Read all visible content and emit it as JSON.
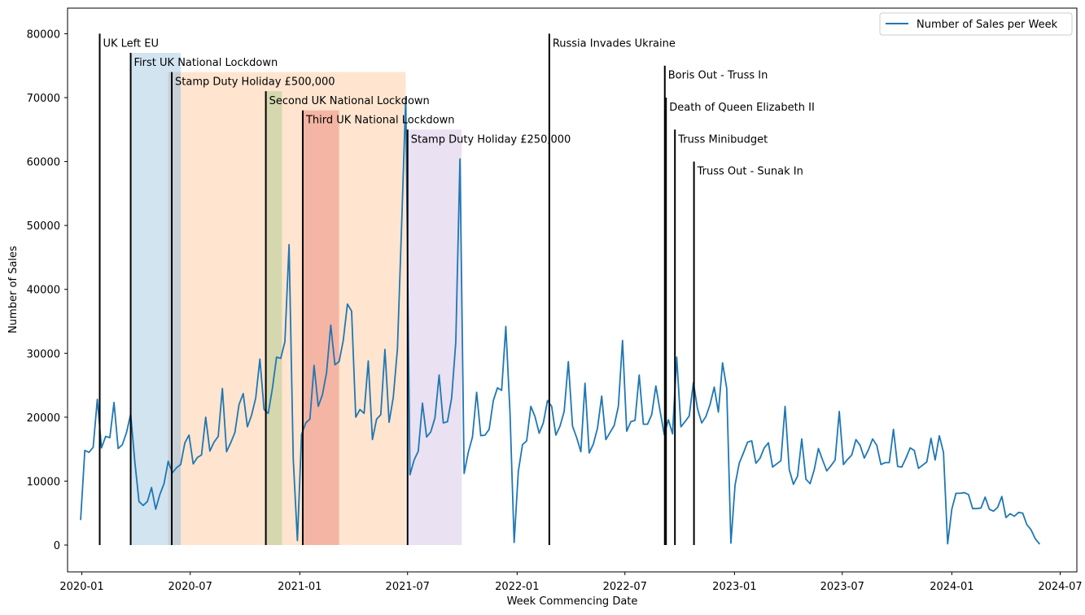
{
  "chart_data": {
    "type": "line",
    "title": "",
    "xlabel": "Week Commencing Date",
    "ylabel": "Number of Sales",
    "xlim": [
      "2019-12-08",
      "2024-07-29"
    ],
    "ylim": [
      -4200,
      84000
    ],
    "x_ticks": [
      {
        "date": "2020-01-01",
        "label": "2020-01"
      },
      {
        "date": "2020-07-01",
        "label": "2020-07"
      },
      {
        "date": "2021-01-01",
        "label": "2021-01"
      },
      {
        "date": "2021-07-01",
        "label": "2021-07"
      },
      {
        "date": "2022-01-01",
        "label": "2022-01"
      },
      {
        "date": "2022-07-01",
        "label": "2022-07"
      },
      {
        "date": "2023-01-01",
        "label": "2023-01"
      },
      {
        "date": "2023-07-01",
        "label": "2023-07"
      },
      {
        "date": "2024-01-01",
        "label": "2024-01"
      },
      {
        "date": "2024-07-01",
        "label": "2024-07"
      }
    ],
    "y_ticks": [
      {
        "value": 0,
        "label": "0"
      },
      {
        "value": 10000,
        "label": "10000"
      },
      {
        "value": 20000,
        "label": "20000"
      },
      {
        "value": 30000,
        "label": "30000"
      },
      {
        "value": 40000,
        "label": "40000"
      },
      {
        "value": 50000,
        "label": "50000"
      },
      {
        "value": 60000,
        "label": "60000"
      },
      {
        "value": 70000,
        "label": "70000"
      },
      {
        "value": 80000,
        "label": "80000"
      }
    ],
    "grid": false,
    "legend": {
      "position": "top-right"
    },
    "series": [
      {
        "name": "Number of Sales per Week",
        "color": "#1f77b4",
        "start_date": "2019-12-30",
        "interval_days": 7,
        "values": [
          4000,
          14800,
          14500,
          15300,
          22800,
          15200,
          17000,
          16800,
          22300,
          15100,
          15700,
          17600,
          20500,
          13000,
          6800,
          6200,
          6800,
          9000,
          5600,
          7900,
          9600,
          13100,
          11300,
          12100,
          12600,
          16000,
          17200,
          12700,
          13700,
          14100,
          20000,
          14700,
          16100,
          17000,
          24500,
          14600,
          16000,
          17600,
          22000,
          23700,
          18500,
          20300,
          23000,
          29100,
          21200,
          20600,
          24500,
          29400,
          29200,
          31800,
          47000,
          13500,
          700,
          17300,
          19100,
          19700,
          28100,
          21700,
          23500,
          27000,
          34400,
          28200,
          28700,
          32000,
          37700,
          36600,
          20000,
          21200,
          20600,
          28800,
          16500,
          19700,
          20400,
          30600,
          19200,
          23100,
          30700,
          50000,
          70100,
          11000,
          13300,
          14700,
          22200,
          16900,
          17700,
          19900,
          26600,
          19100,
          19300,
          23000,
          31800,
          60400,
          11200,
          14500,
          16900,
          23900,
          17100,
          17200,
          18100,
          22600,
          24600,
          24200,
          34200,
          20800,
          400,
          11500,
          15700,
          16300,
          21700,
          20100,
          17500,
          19100,
          22600,
          21700,
          17200,
          18600,
          20900,
          28700,
          18600,
          16800,
          14600,
          25300,
          14400,
          15800,
          18300,
          23300,
          16500,
          17600,
          18700,
          21700,
          32000,
          17800,
          19300,
          19500,
          26600,
          18900,
          18900,
          20400,
          24900,
          21000,
          17300,
          19600,
          17400,
          29400,
          18500,
          19300,
          20200,
          25400,
          21300,
          19100,
          20100,
          22000,
          24700,
          20800,
          28500,
          24500,
          300,
          9400,
          12800,
          14400,
          16100,
          16300,
          12800,
          13600,
          15200,
          16000,
          12200,
          12700,
          13200,
          21700,
          11800,
          9500,
          10800,
          16600,
          10300,
          9600,
          11800,
          15100,
          13300,
          11600,
          12400,
          13300,
          20900,
          12600,
          13400,
          14100,
          16500,
          15600,
          13600,
          14900,
          16600,
          15600,
          12600,
          12900,
          12900,
          18100,
          12300,
          12200,
          13600,
          15200,
          14800,
          12000,
          12500,
          13000,
          16700,
          13300,
          17100,
          14500,
          200,
          5600,
          8100,
          8100,
          8200,
          7900,
          5700,
          5700,
          5800,
          7500,
          5600,
          5300,
          5900,
          7600,
          4300,
          4900,
          4500,
          5100,
          5000,
          3200,
          2400,
          1000,
          200
        ]
      }
    ],
    "spans": [
      {
        "start": "2020-03-23",
        "end": "2020-06-15",
        "color": "#1f77b4",
        "alpha": 0.2,
        "ymax": 77000
      },
      {
        "start": "2020-06-15",
        "end": "2021-06-28",
        "color": "#ff7f0e",
        "alpha": 0.2,
        "ymax": 74000
      },
      {
        "start": "2020-05-25",
        "end": "2020-06-15",
        "color": "#8c564b",
        "alpha": 0.15,
        "ymax": 74000
      },
      {
        "start": "2020-11-05",
        "end": "2020-12-02",
        "color": "#2ca02c",
        "alpha": 0.2,
        "ymax": 71000
      },
      {
        "start": "2021-01-06",
        "end": "2021-03-08",
        "color": "#d62728",
        "alpha": 0.25,
        "ymax": 68000
      },
      {
        "start": "2021-07-01",
        "end": "2021-09-30",
        "color": "#9467bd",
        "alpha": 0.2,
        "ymax": 65000
      }
    ],
    "events": [
      {
        "date": "2020-01-31",
        "label": "UK Left EU",
        "ymax": 80000
      },
      {
        "date": "2020-03-23",
        "label": "First UK National Lockdown",
        "ymax": 77000
      },
      {
        "date": "2020-05-31",
        "label": "Stamp Duty Holiday £500,000",
        "ymax": 74000
      },
      {
        "date": "2020-11-05",
        "label": "Second UK National Lockdown",
        "ymax": 71000
      },
      {
        "date": "2021-01-06",
        "label": "Third UK National Lockdown",
        "ymax": 68000
      },
      {
        "date": "2021-07-01",
        "label": "Stamp Duty Holiday £250,000",
        "ymax": 65000
      },
      {
        "date": "2022-02-24",
        "label": "Russia Invades Ukraine",
        "ymax": 80000
      },
      {
        "date": "2022-09-06",
        "label": "Boris Out - Truss In",
        "ymax": 75000
      },
      {
        "date": "2022-09-08",
        "label": "Death of Queen Elizabeth II",
        "ymax": 70000
      },
      {
        "date": "2022-09-23",
        "label": "Truss Minibudget",
        "ymax": 65000
      },
      {
        "date": "2022-10-25",
        "label": "Truss Out - Sunak In",
        "ymax": 60000
      }
    ]
  }
}
